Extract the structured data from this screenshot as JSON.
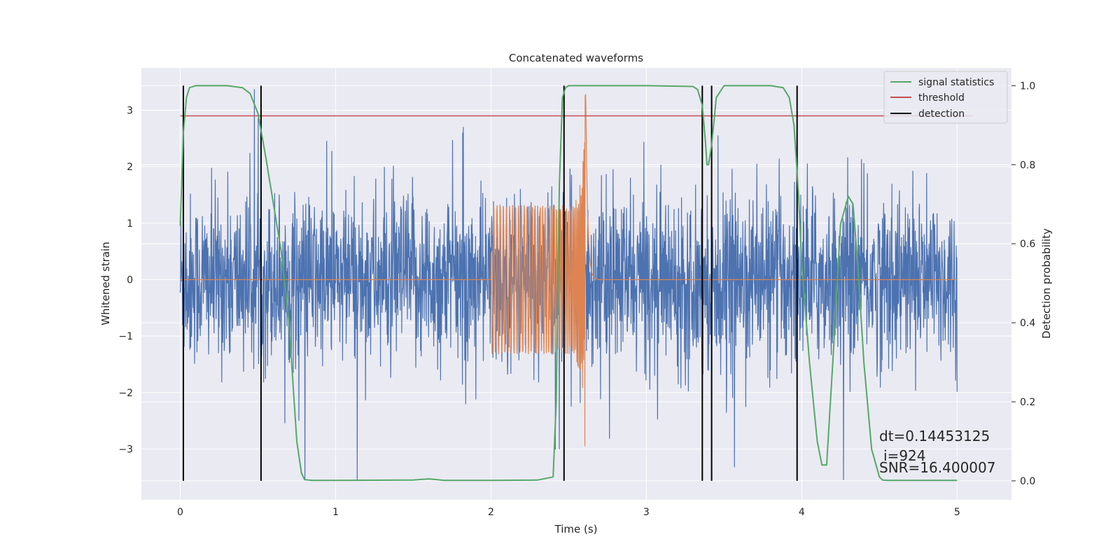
{
  "chart_data": {
    "type": "line",
    "title": "Concatenated waveforms",
    "xlabel": "Time (s)",
    "ylabel": "Whitened strain",
    "ylabel_right": "Detection probability",
    "xlim": [
      -0.25,
      5.35
    ],
    "ylim": [
      -3.9,
      3.75
    ],
    "ylim_right": [
      -0.048,
      1.045
    ],
    "x_ticks": [
      0,
      1,
      2,
      3,
      4,
      5
    ],
    "x_tick_labels": [
      "0",
      "1",
      "2",
      "3",
      "4",
      "5"
    ],
    "y_ticks": [
      -3,
      -2,
      -1,
      0,
      1,
      2,
      3
    ],
    "y_tick_labels": [
      "−3",
      "−2",
      "−1",
      "0",
      "1",
      "2",
      "3"
    ],
    "y2_ticks": [
      0.0,
      0.2,
      0.4,
      0.6,
      0.8,
      1.0
    ],
    "y2_tick_labels": [
      "0.0",
      "0.2",
      "0.4",
      "0.6",
      "0.8",
      "1.0"
    ],
    "grid": true,
    "legend_position": "top-right",
    "colors": {
      "strain": "#4c72b0",
      "waveform": "#dd8452",
      "signal_statistics": "#55a868",
      "threshold": "#c44e52",
      "detection": "#000000",
      "background": "#eaeaf2",
      "grid": "#ffffff"
    },
    "legend": [
      {
        "label": "signal statistics",
        "color": "#55a868"
      },
      {
        "label": "threshold",
        "color": "#c44e52"
      },
      {
        "label": "detection",
        "color": "#000000"
      }
    ],
    "strain": {
      "x_start": 0.0,
      "x_end": 5.0,
      "noise_sigma": 0.75,
      "y_min": -3.55,
      "y_max": 3.6
    },
    "waveform": {
      "chirp_start": 2.0,
      "merger_time": 2.61,
      "peak_amplitude": 3.3,
      "x_start": 0.0,
      "x_end": 5.0
    },
    "signal_statistics": {
      "x": [
        0.0,
        0.02,
        0.04,
        0.06,
        0.1,
        0.2,
        0.3,
        0.4,
        0.45,
        0.5,
        0.55,
        0.6,
        0.65,
        0.7,
        0.72,
        0.75,
        0.78,
        0.8,
        0.85,
        1.0,
        1.5,
        1.6,
        1.7,
        2.0,
        2.3,
        2.4,
        2.42,
        2.44,
        2.46,
        2.48,
        2.5,
        2.55,
        3.0,
        3.3,
        3.33,
        3.36,
        3.38,
        3.39,
        3.4,
        3.42,
        3.45,
        3.5,
        3.8,
        3.88,
        3.92,
        3.95,
        3.98,
        4.0,
        4.05,
        4.1,
        4.13,
        4.16,
        4.2,
        4.25,
        4.3,
        4.33,
        4.36,
        4.4,
        4.45,
        4.5,
        4.52,
        4.55,
        4.6,
        5.0
      ],
      "y": [
        0.645,
        0.88,
        0.97,
        0.995,
        1.0,
        1.0,
        1.0,
        0.995,
        0.98,
        0.93,
        0.82,
        0.7,
        0.58,
        0.4,
        0.28,
        0.1,
        0.02,
        0.003,
        0.001,
        0.001,
        0.002,
        0.005,
        0.001,
        0.001,
        0.002,
        0.01,
        0.2,
        0.75,
        0.97,
        0.995,
        1.0,
        1.0,
        1.0,
        0.998,
        0.99,
        0.95,
        0.86,
        0.8,
        0.8,
        0.85,
        0.97,
        1.0,
        1.0,
        0.995,
        0.97,
        0.9,
        0.72,
        0.55,
        0.3,
        0.1,
        0.04,
        0.04,
        0.3,
        0.65,
        0.72,
        0.7,
        0.55,
        0.3,
        0.08,
        0.01,
        0.002,
        0.001,
        0.001,
        0.001
      ]
    },
    "threshold": {
      "x": [
        0.0,
        5.1
      ],
      "y": 2.9
    },
    "detections": [
      0.02,
      0.52,
      2.47,
      3.36,
      3.42,
      3.97
    ],
    "annotations": {
      "dt": "dt=0.14453125",
      "i": "i=924",
      "snr": "SNR=16.400007"
    }
  }
}
